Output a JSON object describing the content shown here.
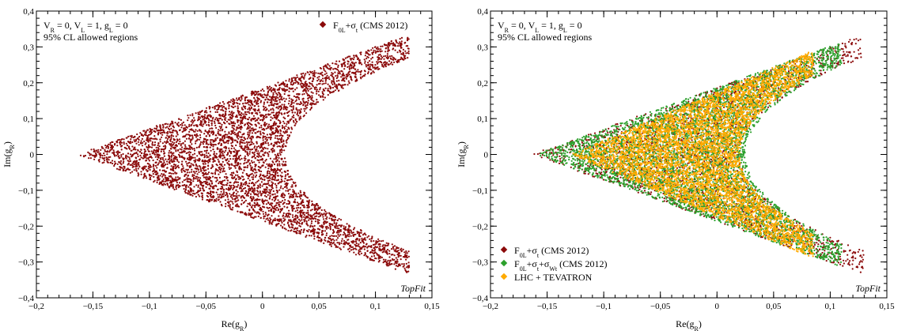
{
  "chart_data": [
    {
      "type": "scatter",
      "xlabel_main": "Re(g",
      "xlabel_sub": "R",
      "xlabel_end": ")",
      "ylabel_main": "Im(g",
      "ylabel_sub": "R",
      "ylabel_end": ")",
      "xlim": [
        -0.2,
        0.15
      ],
      "ylim": [
        -0.4,
        0.4
      ],
      "xticks": [
        -0.2,
        -0.15,
        -0.1,
        -0.05,
        0,
        0.05,
        0.1,
        0.15
      ],
      "xtick_labels": [
        "−0,2",
        "−0,15",
        "−0,1",
        "−0,05",
        "0",
        "0,05",
        "0,1",
        "0,15"
      ],
      "yticks": [
        -0.4,
        -0.3,
        -0.2,
        -0.1,
        0,
        0.1,
        0.2,
        0.3,
        0.4
      ],
      "ytick_labels": [
        "−0,4",
        "−0,3",
        "−0,2",
        "−0,1",
        "0",
        "0,1",
        "0,2",
        "0,3",
        "0,4"
      ],
      "note_line1": {
        "p1": "V",
        "s1": "R",
        "p2": " = 0, V",
        "s2": "L",
        "p3": " = 1, g",
        "s3": "L",
        "p4": " = 0"
      },
      "note_line2": "95% CL allowed regions",
      "brand": "TopFit",
      "legend_position": "top-right",
      "series": [
        {
          "name_parts": [
            {
              "t": "F",
              "sub": false
            },
            {
              "t": "0L",
              "sub": true
            },
            {
              "t": "+σ",
              "sub": false
            },
            {
              "t": "t",
              "sub": true
            },
            {
              "t": " (CMS 2012)",
              "sub": false
            }
          ],
          "color": "#8b0a0a",
          "region": {
            "outer_x": -0.16,
            "outer_xmax": 0.13,
            "outer_y": 0.33,
            "inner_x": 0.02,
            "inner_xmax": 0.13,
            "inner_y": 0.27
          },
          "n_points": 5200
        }
      ]
    },
    {
      "type": "scatter",
      "xlabel_main": "Re(g",
      "xlabel_sub": "R",
      "xlabel_end": ")",
      "ylabel_main": "Im(g",
      "ylabel_sub": "R",
      "ylabel_end": ")",
      "xlim": [
        -0.2,
        0.15
      ],
      "ylim": [
        -0.4,
        0.4
      ],
      "xticks": [
        -0.2,
        -0.15,
        -0.1,
        -0.05,
        0,
        0.05,
        0.1,
        0.15
      ],
      "xtick_labels": [
        "−0,2",
        "−0,15",
        "−0,1",
        "−0,05",
        "0",
        "0,05",
        "0,1",
        "0,15"
      ],
      "yticks": [
        -0.4,
        -0.3,
        -0.2,
        -0.1,
        0,
        0.1,
        0.2,
        0.3,
        0.4
      ],
      "ytick_labels": [
        "−0,4",
        "−0,3",
        "−0,2",
        "−0,1",
        "0",
        "0,1",
        "0,2",
        "0,3",
        "0,4"
      ],
      "note_line1": {
        "p1": "V",
        "s1": "R",
        "p2": " = 0, V",
        "s2": "L",
        "p3": " = 1, g",
        "s3": "L",
        "p4": " = 0"
      },
      "note_line2": "95% CL allowed regions",
      "brand": "TopFit",
      "legend_position": "bottom-left",
      "series": [
        {
          "name_parts": [
            {
              "t": "F",
              "sub": false
            },
            {
              "t": "0L",
              "sub": true
            },
            {
              "t": "+σ",
              "sub": false
            },
            {
              "t": "t",
              "sub": true
            },
            {
              "t": " (CMS 2012)",
              "sub": false
            }
          ],
          "color": "#8b0a0a",
          "region": {
            "outer_x": -0.16,
            "outer_xmax": 0.13,
            "outer_y": 0.33,
            "inner_x": 0.02,
            "inner_xmax": 0.13,
            "inner_y": 0.27
          },
          "n_points": 2200
        },
        {
          "name_parts": [
            {
              "t": "F",
              "sub": false
            },
            {
              "t": "0L",
              "sub": true
            },
            {
              "t": "+σ",
              "sub": false
            },
            {
              "t": "t",
              "sub": true
            },
            {
              "t": "+σ",
              "sub": false
            },
            {
              "t": "Wt",
              "sub": true
            },
            {
              "t": " (CMS 2012)",
              "sub": false
            }
          ],
          "color": "#2ca02c",
          "region": {
            "outer_x": -0.157,
            "outer_xmax": 0.11,
            "outer_y": 0.31,
            "inner_x": 0.025,
            "inner_xmax": 0.11,
            "inner_y": 0.25
          },
          "n_points": 5000
        },
        {
          "name_parts": [
            {
              "t": "LHC + TEVATRON",
              "sub": false
            }
          ],
          "color": "#ffaa00",
          "region": {
            "outer_x": -0.125,
            "outer_xmax": 0.085,
            "outer_y": 0.285,
            "inner_x": 0.02,
            "inner_xmax": 0.085,
            "inner_y": 0.22
          },
          "n_points": 5500
        }
      ]
    }
  ]
}
